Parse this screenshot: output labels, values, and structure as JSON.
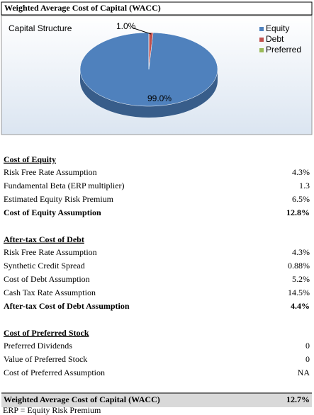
{
  "title": "Weighted Average Cost of Capital (WACC)",
  "chart": {
    "type": "pie",
    "title": "Capital Structure",
    "categories": [
      "Equity",
      "Debt",
      "Preferred"
    ],
    "values": [
      99.0,
      1.0,
      0
    ],
    "value_labels": [
      "99.0%",
      "1.0%",
      null
    ],
    "colors": [
      "#4f81bd",
      "#c0504d",
      "#9bbb59"
    ]
  },
  "sections": [
    {
      "heading": "Cost of Equity",
      "rows": [
        [
          "Risk Free Rate Assumption",
          "4.3%"
        ],
        [
          "Fundamental Beta (ERP multiplier)",
          "1.3"
        ],
        [
          "Estimated Equity Risk Premium",
          "6.5%"
        ]
      ],
      "total": [
        "Cost of Equity Assumption",
        "12.8%"
      ]
    },
    {
      "heading": "After-tax Cost of Debt",
      "rows": [
        [
          "Risk Free Rate Assumption",
          "4.3%"
        ],
        [
          "Synthetic Credit Spread",
          "0.88%"
        ],
        [
          "Cost of Debt Assumption",
          "5.2%"
        ],
        [
          "Cash Tax Rate Assumption",
          "14.5%"
        ]
      ],
      "total": [
        "After-tax Cost of Debt Assumption",
        "4.4%"
      ]
    },
    {
      "heading": "Cost of Preferred Stock",
      "rows": [
        [
          "Preferred Dividends",
          "0"
        ],
        [
          "Value of Preferred Stock",
          "0"
        ],
        [
          "Cost of Preferred Assumption",
          "NA"
        ]
      ]
    }
  ],
  "summary": [
    "Weighted Average Cost of Capital (WACC)",
    "12.7%"
  ],
  "footnote": "ERP = Equity Risk Premium"
}
